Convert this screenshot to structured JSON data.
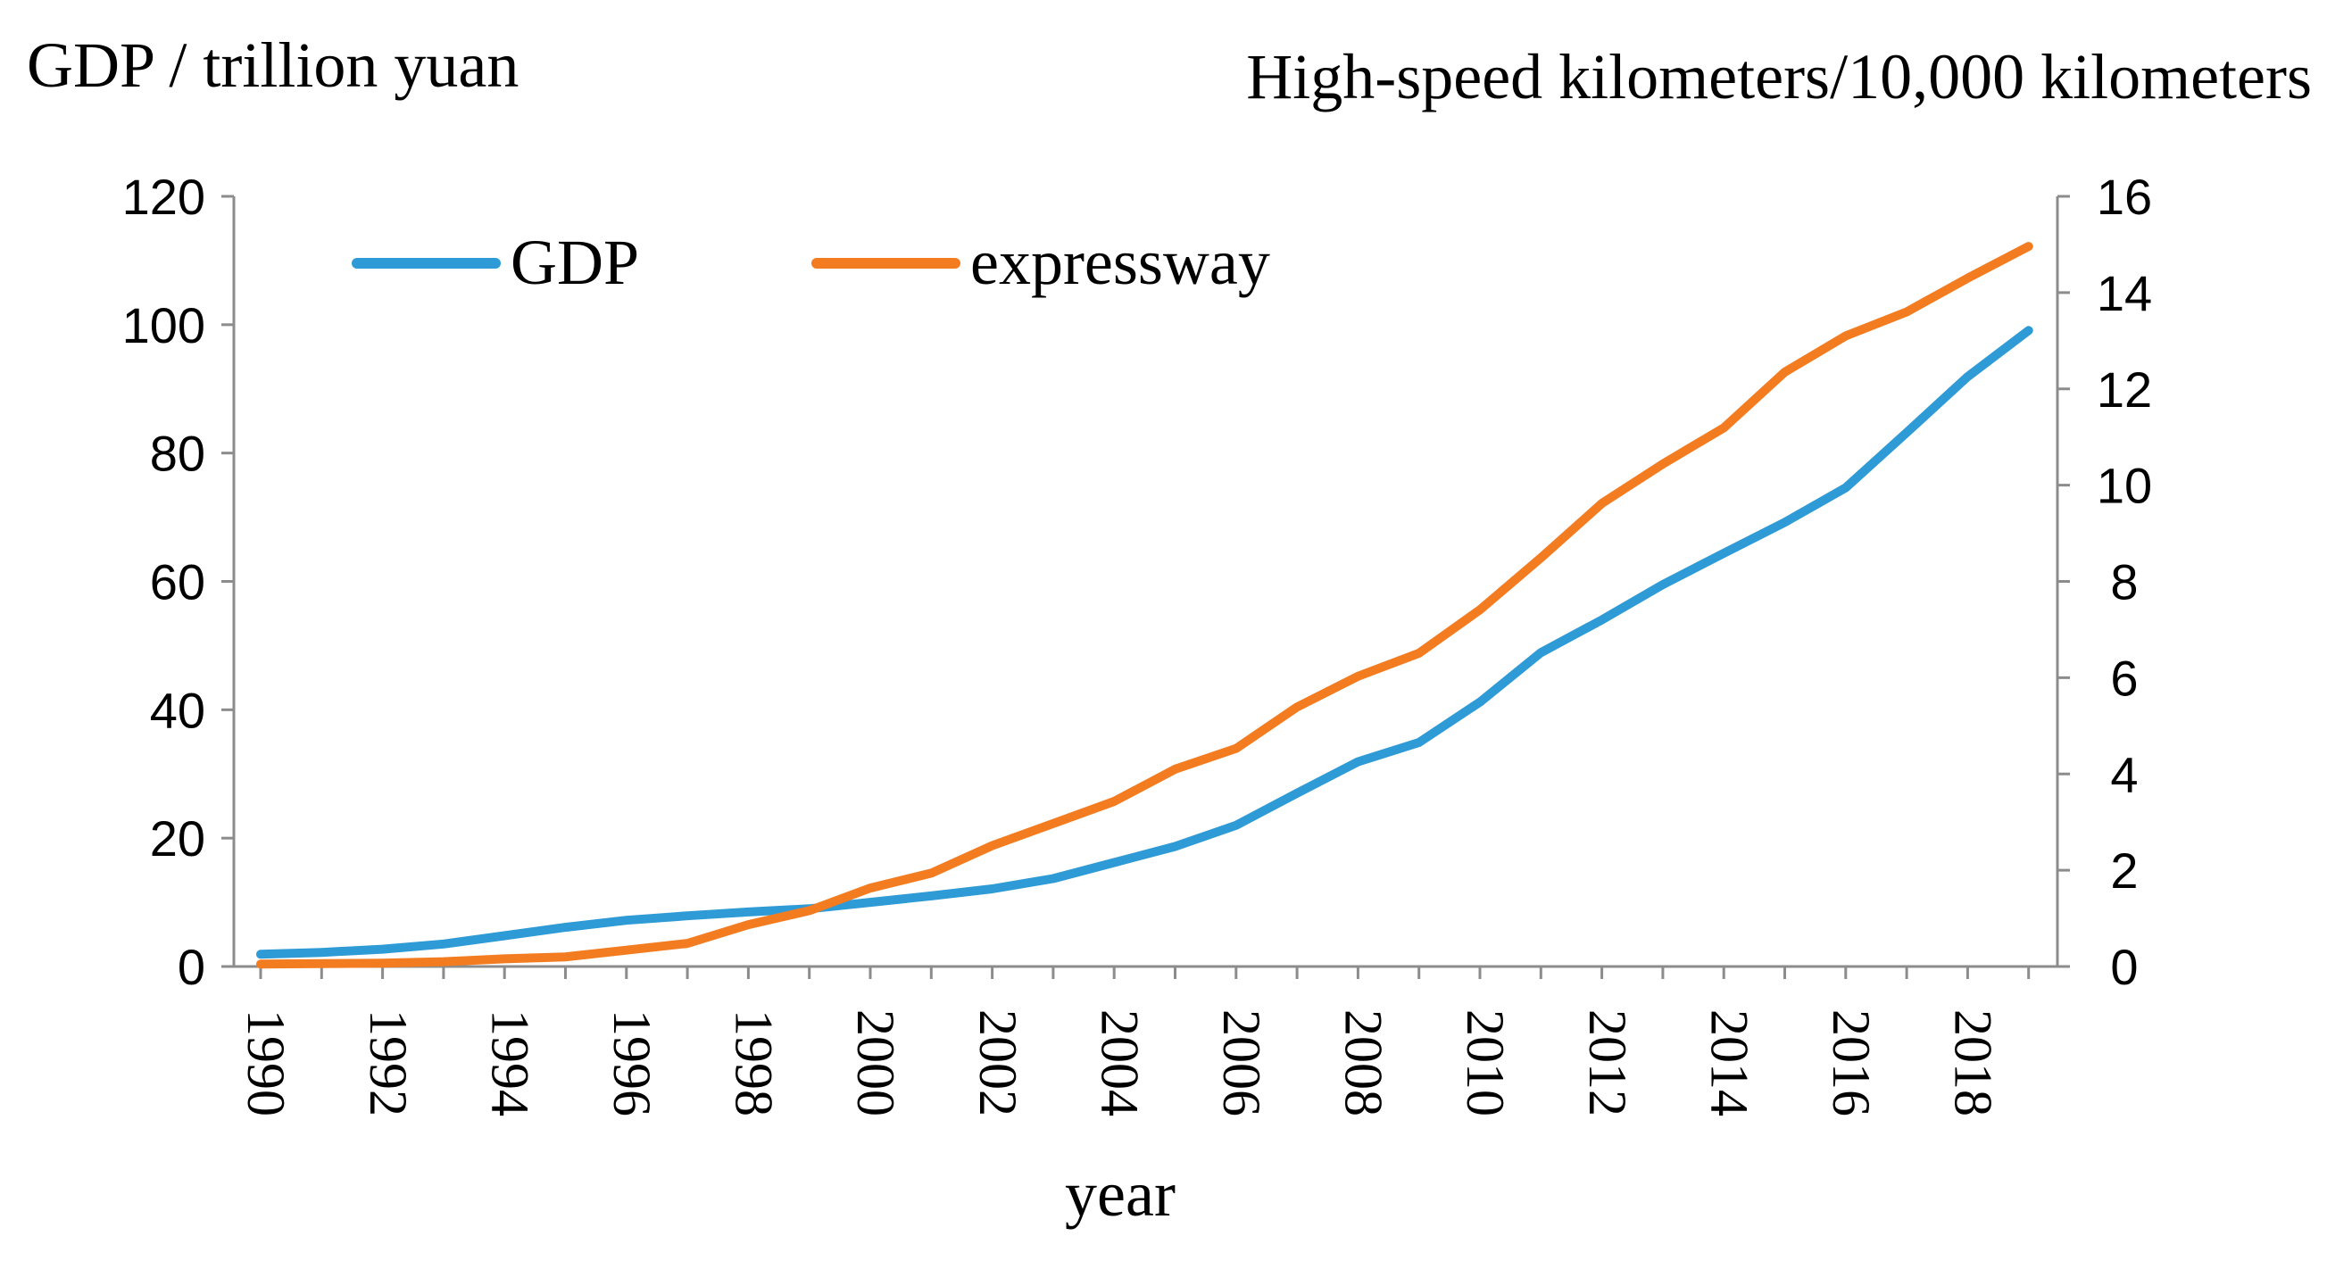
{
  "chart_data": {
    "type": "line",
    "x": [
      1990,
      1991,
      1992,
      1993,
      1994,
      1995,
      1996,
      1997,
      1998,
      1999,
      2000,
      2001,
      2002,
      2003,
      2004,
      2005,
      2006,
      2007,
      2008,
      2009,
      2010,
      2011,
      2012,
      2013,
      2014,
      2015,
      2016,
      2017,
      2018,
      2019
    ],
    "x_tick_labels": [
      "1990",
      "1992",
      "1994",
      "1996",
      "1998",
      "2000",
      "2002",
      "2004",
      "2006",
      "2008",
      "2010",
      "2012",
      "2014",
      "2016",
      "2018"
    ],
    "xlabel": "year",
    "ylabel_left": "GDP / trillion yuan",
    "ylabel_right": "High-speed kilometers/10,000 kilometers",
    "ylim_left": [
      0,
      120
    ],
    "ylim_right": [
      0,
      16
    ],
    "y_ticks_left": [
      "0",
      "20",
      "40",
      "60",
      "80",
      "100",
      "120"
    ],
    "y_ticks_right": [
      "0",
      "2",
      "4",
      "6",
      "8",
      "10",
      "12",
      "14",
      "16"
    ],
    "legend_position": "top-left",
    "series": [
      {
        "name": "GDP",
        "axis": "left",
        "color": "#2e9bd6",
        "values": [
          1.9,
          2.2,
          2.7,
          3.5,
          4.8,
          6.1,
          7.2,
          7.9,
          8.5,
          9.0,
          10.0,
          11.0,
          12.1,
          13.7,
          16.2,
          18.7,
          22.0,
          27.0,
          31.9,
          34.9,
          41.2,
          48.9,
          54.0,
          59.5,
          64.4,
          69.2,
          74.6,
          83.2,
          91.9,
          99.1
        ]
      },
      {
        "name": "expressway",
        "axis": "right",
        "color": "#f47c20",
        "values": [
          0.05,
          0.06,
          0.07,
          0.1,
          0.16,
          0.2,
          0.34,
          0.48,
          0.87,
          1.16,
          1.63,
          1.94,
          2.51,
          2.97,
          3.43,
          4.1,
          4.53,
          5.39,
          6.03,
          6.51,
          7.41,
          8.49,
          9.62,
          10.44,
          11.19,
          12.35,
          13.1,
          13.6,
          14.3,
          14.96
        ]
      }
    ]
  }
}
